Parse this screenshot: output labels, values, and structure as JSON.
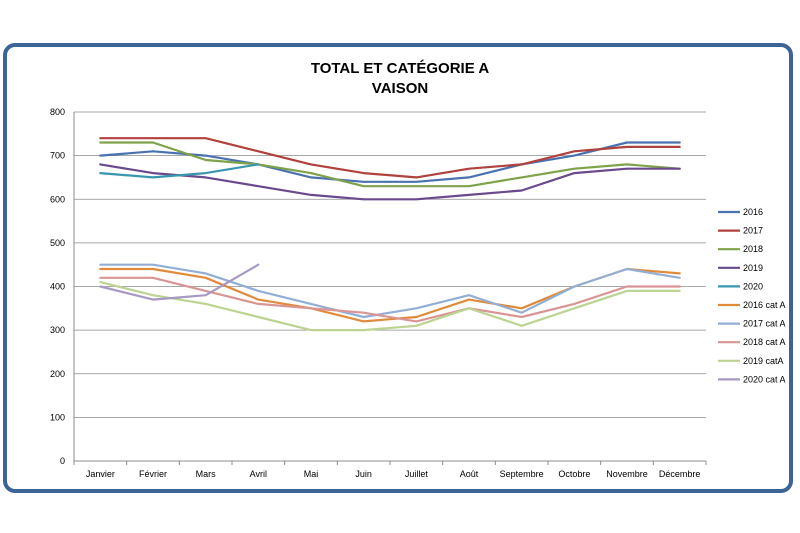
{
  "chart_data": {
    "type": "line",
    "title": "TOTAL ET CATÉGORIE A",
    "subtitle": "VAISON",
    "categories": [
      "Janvier",
      "Février",
      "Mars",
      "Avril",
      "Mai",
      "Juin",
      "Juillet",
      "Août",
      "Septembre",
      "Octobre",
      "Novembre",
      "Décembre"
    ],
    "ylim": [
      0,
      800
    ],
    "yticks": [
      0,
      100,
      200,
      300,
      400,
      500,
      600,
      700,
      800
    ],
    "grid": true,
    "legend_position": "right",
    "series": [
      {
        "name": "2016",
        "color": "#4a72b0",
        "values": [
          700,
          710,
          700,
          680,
          650,
          640,
          640,
          650,
          680,
          700,
          730,
          730
        ]
      },
      {
        "name": "2017",
        "color": "#b0413e",
        "values": [
          740,
          740,
          740,
          710,
          680,
          660,
          650,
          670,
          680,
          710,
          720,
          720
        ]
      },
      {
        "name": "2018",
        "color": "#7ea24a",
        "values": [
          730,
          730,
          690,
          680,
          660,
          630,
          630,
          630,
          650,
          670,
          680,
          670
        ]
      },
      {
        "name": "2019",
        "color": "#6a4a8c",
        "values": [
          680,
          660,
          650,
          630,
          610,
          600,
          600,
          610,
          620,
          660,
          670,
          670
        ]
      },
      {
        "name": "2020",
        "color": "#3a96b0",
        "values": [
          660,
          650,
          660,
          680,
          null,
          null,
          null,
          null,
          null,
          null,
          null,
          null
        ]
      },
      {
        "name": "2016 cat A",
        "color": "#e08a3c",
        "values": [
          440,
          440,
          420,
          370,
          350,
          320,
          330,
          370,
          350,
          400,
          440,
          430
        ]
      },
      {
        "name": "2017 cat A",
        "color": "#93aed4",
        "values": [
          450,
          450,
          430,
          390,
          360,
          330,
          350,
          380,
          340,
          400,
          440,
          420
        ]
      },
      {
        "name": "2018 cat A",
        "color": "#d99594",
        "values": [
          420,
          420,
          390,
          360,
          350,
          340,
          320,
          350,
          330,
          360,
          400,
          400
        ]
      },
      {
        "name": "2019 catA",
        "color": "#bcd392",
        "values": [
          410,
          380,
          360,
          330,
          300,
          300,
          310,
          350,
          310,
          350,
          390,
          390
        ]
      },
      {
        "name": "2020 cat A",
        "color": "#a899c4",
        "values": [
          400,
          370,
          380,
          450,
          null,
          null,
          null,
          null,
          null,
          null,
          null,
          null
        ]
      }
    ]
  }
}
